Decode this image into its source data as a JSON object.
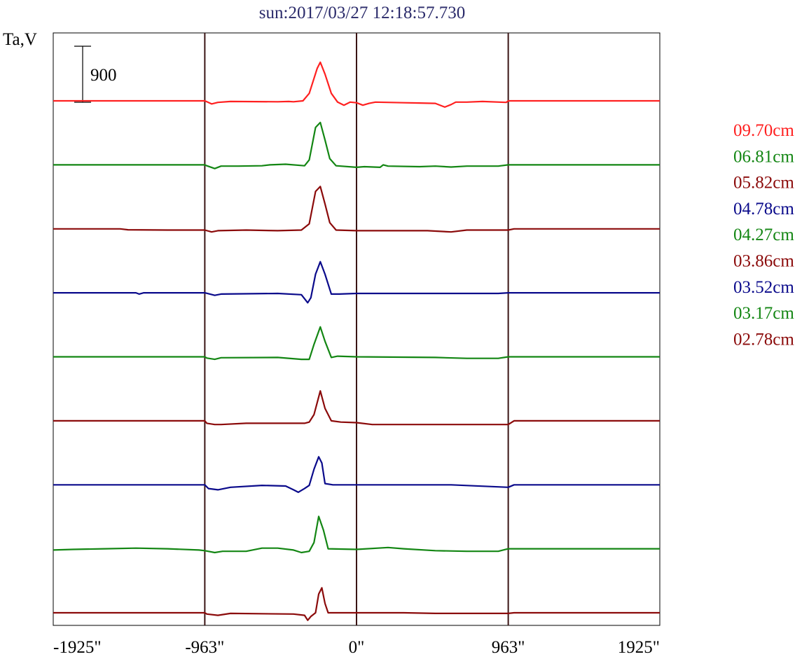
{
  "chart_data": {
    "type": "line",
    "title": "sun:2017/03/27 12:18:57.730",
    "ylabel": "Ta,V",
    "xlabel": "",
    "scale_bar_label": "900",
    "scale_bar_value": 900,
    "xlim": [
      -1925,
      1925
    ],
    "x_ticks": [
      {
        "value": -1925,
        "label": "-1925\""
      },
      {
        "value": -963,
        "label": "-963\""
      },
      {
        "value": 0,
        "label": "0\""
      },
      {
        "value": 963,
        "label": "963\""
      },
      {
        "value": 1925,
        "label": "1925\""
      }
    ],
    "vertical_lines": [
      -963,
      0,
      963
    ],
    "legend_placement": "right",
    "series": [
      {
        "name": "09.70cm",
        "color": "#ff2020",
        "points": [
          [
            -1925,
            0
          ],
          [
            -963,
            0
          ],
          [
            -950,
            -15
          ],
          [
            -920,
            -50
          ],
          [
            -880,
            -25
          ],
          [
            -800,
            -10
          ],
          [
            -500,
            -15
          ],
          [
            -430,
            -10
          ],
          [
            -400,
            -15
          ],
          [
            -340,
            0
          ],
          [
            -300,
            120
          ],
          [
            -250,
            520
          ],
          [
            -230,
            620
          ],
          [
            -200,
            430
          ],
          [
            -160,
            120
          ],
          [
            -120,
            -20
          ],
          [
            -80,
            -70
          ],
          [
            -40,
            -20
          ],
          [
            0,
            -30
          ],
          [
            40,
            -70
          ],
          [
            80,
            -40
          ],
          [
            120,
            -20
          ],
          [
            300,
            -30
          ],
          [
            400,
            -35
          ],
          [
            500,
            -40
          ],
          [
            560,
            -100
          ],
          [
            600,
            -60
          ],
          [
            630,
            -20
          ],
          [
            700,
            -20
          ],
          [
            800,
            -10
          ],
          [
            950,
            -25
          ],
          [
            963,
            0
          ],
          [
            1925,
            0
          ]
        ]
      },
      {
        "name": "06.81cm",
        "color": "#138613",
        "points": [
          [
            -1925,
            0
          ],
          [
            -963,
            0
          ],
          [
            -950,
            -15
          ],
          [
            -900,
            -60
          ],
          [
            -860,
            -20
          ],
          [
            -750,
            -20
          ],
          [
            -600,
            -15
          ],
          [
            -550,
            0
          ],
          [
            -450,
            10
          ],
          [
            -350,
            -10
          ],
          [
            -330,
            -15
          ],
          [
            -300,
            80
          ],
          [
            -260,
            600
          ],
          [
            -230,
            680
          ],
          [
            -200,
            400
          ],
          [
            -170,
            100
          ],
          [
            -130,
            -15
          ],
          [
            0,
            -40
          ],
          [
            50,
            -30
          ],
          [
            150,
            -40
          ],
          [
            170,
            0
          ],
          [
            200,
            -20
          ],
          [
            400,
            -30
          ],
          [
            500,
            -20
          ],
          [
            600,
            -35
          ],
          [
            700,
            -20
          ],
          [
            900,
            -20
          ],
          [
            963,
            0
          ],
          [
            1925,
            0
          ]
        ]
      },
      {
        "name": "05.82cm",
        "color": "#8b0a0a",
        "points": [
          [
            -1925,
            0
          ],
          [
            -1800,
            0
          ],
          [
            -1500,
            0
          ],
          [
            -1450,
            -15
          ],
          [
            -1200,
            -20
          ],
          [
            -963,
            -20
          ],
          [
            -920,
            -50
          ],
          [
            -880,
            -30
          ],
          [
            -700,
            -20
          ],
          [
            -500,
            -30
          ],
          [
            -350,
            -20
          ],
          [
            -300,
            80
          ],
          [
            -260,
            600
          ],
          [
            -230,
            680
          ],
          [
            -200,
            400
          ],
          [
            -170,
            100
          ],
          [
            -130,
            -20
          ],
          [
            0,
            -30
          ],
          [
            150,
            -30
          ],
          [
            300,
            -30
          ],
          [
            450,
            -30
          ],
          [
            600,
            -50
          ],
          [
            700,
            -20
          ],
          [
            963,
            -20
          ],
          [
            1000,
            0
          ],
          [
            1925,
            0
          ]
        ]
      },
      {
        "name": "04.78cm",
        "color": "#0a0a8b",
        "points": [
          [
            -1925,
            0
          ],
          [
            -1400,
            0
          ],
          [
            -1380,
            -20
          ],
          [
            -1350,
            0
          ],
          [
            -963,
            0
          ],
          [
            -900,
            -40
          ],
          [
            -860,
            -20
          ],
          [
            -500,
            -10
          ],
          [
            -350,
            -30
          ],
          [
            -310,
            -160
          ],
          [
            -290,
            -80
          ],
          [
            -260,
            300
          ],
          [
            -230,
            500
          ],
          [
            -200,
            300
          ],
          [
            -160,
            -20
          ],
          [
            -110,
            -20
          ],
          [
            0,
            -10
          ],
          [
            300,
            -10
          ],
          [
            700,
            -10
          ],
          [
            900,
            -10
          ],
          [
            963,
            0
          ],
          [
            1925,
            0
          ]
        ]
      },
      {
        "name": "04.27cm",
        "color": "#138613",
        "points": [
          [
            -1925,
            0
          ],
          [
            -963,
            0
          ],
          [
            -950,
            -20
          ],
          [
            -900,
            -40
          ],
          [
            -860,
            -15
          ],
          [
            -500,
            -10
          ],
          [
            -350,
            -40
          ],
          [
            -300,
            -40
          ],
          [
            -270,
            200
          ],
          [
            -230,
            480
          ],
          [
            -200,
            250
          ],
          [
            -160,
            -10
          ],
          [
            -120,
            10
          ],
          [
            0,
            0
          ],
          [
            500,
            -10
          ],
          [
            700,
            -25
          ],
          [
            900,
            -25
          ],
          [
            963,
            0
          ],
          [
            1925,
            0
          ]
        ]
      },
      {
        "name": "03.86cm",
        "color": "#8b0a0a",
        "points": [
          [
            -1925,
            0
          ],
          [
            -1700,
            0
          ],
          [
            -1500,
            0
          ],
          [
            -1300,
            0
          ],
          [
            -963,
            0
          ],
          [
            -950,
            -40
          ],
          [
            -900,
            -60
          ],
          [
            -860,
            -60
          ],
          [
            -700,
            -40
          ],
          [
            -500,
            -40
          ],
          [
            -330,
            -40
          ],
          [
            -300,
            -20
          ],
          [
            -270,
            100
          ],
          [
            -230,
            480
          ],
          [
            -200,
            200
          ],
          [
            -160,
            0
          ],
          [
            -100,
            -20
          ],
          [
            0,
            -30
          ],
          [
            100,
            -60
          ],
          [
            300,
            -60
          ],
          [
            500,
            -60
          ],
          [
            700,
            -60
          ],
          [
            963,
            -60
          ],
          [
            1000,
            0
          ],
          [
            1925,
            0
          ]
        ]
      },
      {
        "name": "03.52cm",
        "color": "#0a0a8b",
        "points": [
          [
            -1925,
            0
          ],
          [
            -963,
            0
          ],
          [
            -940,
            -60
          ],
          [
            -880,
            -80
          ],
          [
            -800,
            -40
          ],
          [
            -600,
            -10
          ],
          [
            -450,
            -20
          ],
          [
            -400,
            -80
          ],
          [
            -370,
            -120
          ],
          [
            -330,
            -60
          ],
          [
            -300,
            -10
          ],
          [
            -270,
            250
          ],
          [
            -240,
            450
          ],
          [
            -220,
            350
          ],
          [
            -200,
            20
          ],
          [
            -150,
            0
          ],
          [
            0,
            0
          ],
          [
            600,
            0
          ],
          [
            963,
            -40
          ],
          [
            1000,
            0
          ],
          [
            1925,
            0
          ]
        ]
      },
      {
        "name": "03.17cm",
        "color": "#138613",
        "points": [
          [
            -1925,
            -20
          ],
          [
            -1800,
            -10
          ],
          [
            -1600,
            0
          ],
          [
            -1400,
            10
          ],
          [
            -1200,
            0
          ],
          [
            -1000,
            -20
          ],
          [
            -963,
            -30
          ],
          [
            -900,
            -60
          ],
          [
            -850,
            -40
          ],
          [
            -700,
            -40
          ],
          [
            -600,
            10
          ],
          [
            -500,
            10
          ],
          [
            -400,
            -20
          ],
          [
            -350,
            -60
          ],
          [
            -300,
            -40
          ],
          [
            -270,
            100
          ],
          [
            -240,
            520
          ],
          [
            -210,
            300
          ],
          [
            -180,
            0
          ],
          [
            0,
            -10
          ],
          [
            200,
            20
          ],
          [
            300,
            0
          ],
          [
            500,
            -30
          ],
          [
            700,
            -40
          ],
          [
            900,
            -40
          ],
          [
            963,
            0
          ],
          [
            1925,
            0
          ]
        ]
      },
      {
        "name": "02.78cm",
        "color": "#8b0a0a",
        "points": [
          [
            -1925,
            0
          ],
          [
            -1700,
            0
          ],
          [
            -1500,
            0
          ],
          [
            -1300,
            0
          ],
          [
            -963,
            0
          ],
          [
            -950,
            -20
          ],
          [
            -880,
            -40
          ],
          [
            -800,
            -10
          ],
          [
            -400,
            -20
          ],
          [
            -330,
            -40
          ],
          [
            -310,
            -120
          ],
          [
            -290,
            -60
          ],
          [
            -260,
            0
          ],
          [
            -240,
            300
          ],
          [
            -220,
            400
          ],
          [
            -200,
            150
          ],
          [
            -180,
            0
          ],
          [
            0,
            0
          ],
          [
            300,
            0
          ],
          [
            500,
            -10
          ],
          [
            700,
            -10
          ],
          [
            963,
            -10
          ],
          [
            1000,
            0
          ],
          [
            1925,
            0
          ]
        ]
      }
    ]
  }
}
